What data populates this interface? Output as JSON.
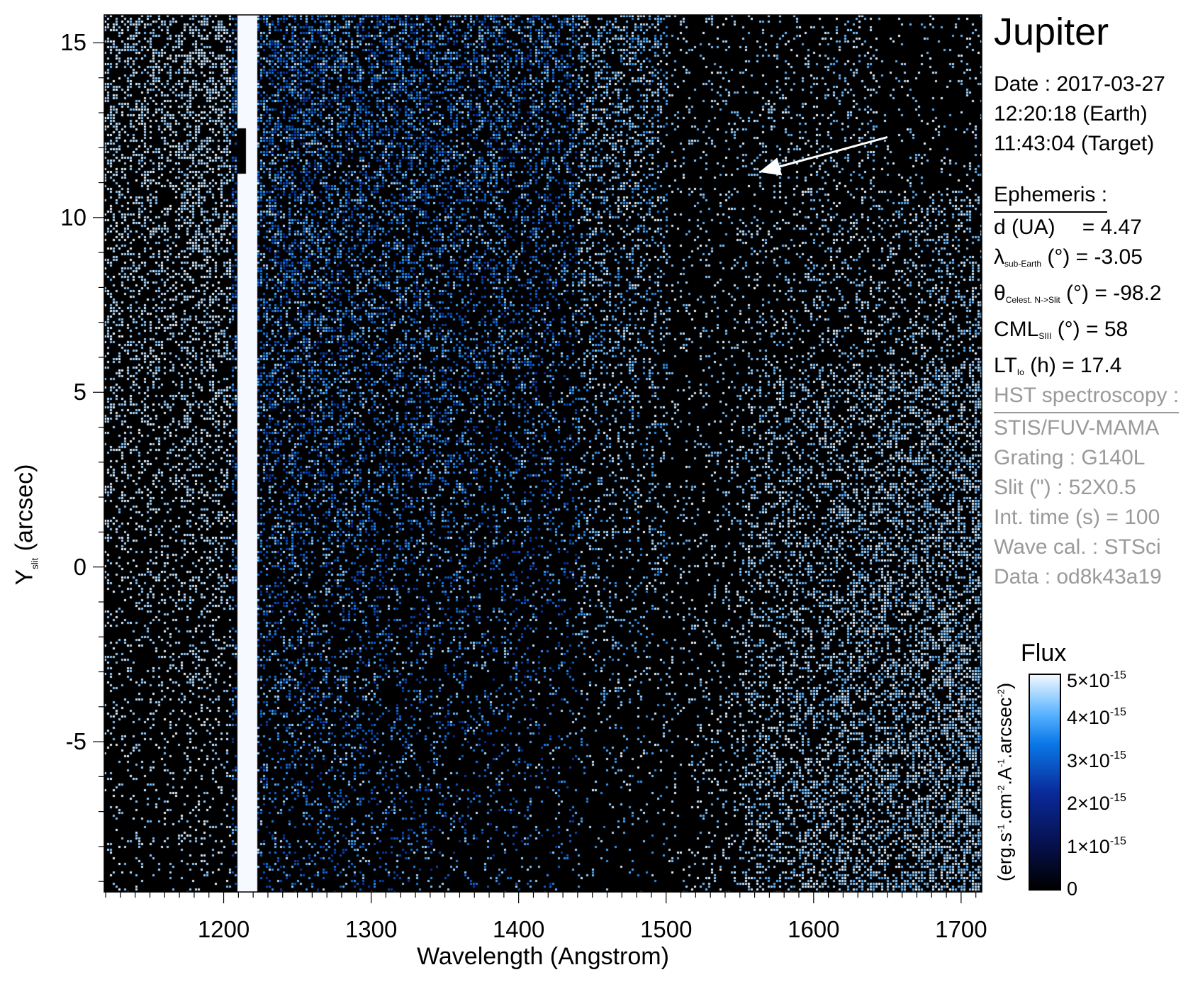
{
  "chart_data": {
    "type": "heatmap",
    "title": "Jupiter",
    "xlabel": "Wavelength (Angstrom)",
    "ylabel": {
      "main": "Y",
      "sub": "slit",
      "unit": "(arcsec)"
    },
    "xlim": [
      1119,
      1714
    ],
    "ylim": [
      -9.3,
      15.8
    ],
    "xticks": [
      1200,
      1300,
      1400,
      1500,
      1600,
      1700
    ],
    "yticks": [
      15,
      10,
      5,
      0,
      -5
    ],
    "xtick_labels": [
      "1200",
      "1300",
      "1400",
      "1500",
      "1600",
      "1700"
    ],
    "ytick_labels": [
      "15",
      "10",
      "5",
      "0",
      "-5"
    ],
    "features": {
      "lyman_alpha_band": [
        1208,
        1222
      ],
      "annotation_arrow": {
        "from": [
          1650,
          12.3
        ],
        "to": [
          1563,
          11.3
        ]
      }
    },
    "colorbar": {
      "title": "Flux",
      "unit_parts": [
        "(erg.s",
        "-1",
        ".cm",
        "-2",
        ".A",
        "-1",
        ".arcsec",
        "-2",
        ")"
      ],
      "range": [
        0,
        5e-15
      ],
      "ticks": [
        {
          "value": 5e-15,
          "mantissa": "5×10",
          "exp": "-15"
        },
        {
          "value": 4e-15,
          "mantissa": "4×10",
          "exp": "-15"
        },
        {
          "value": 3e-15,
          "mantissa": "3×10",
          "exp": "-15"
        },
        {
          "value": 2e-15,
          "mantissa": "2×10",
          "exp": "-15"
        },
        {
          "value": 1e-15,
          "mantissa": "1×10",
          "exp": "-15"
        },
        {
          "value": 0,
          "mantissa": "0",
          "exp": ""
        }
      ],
      "colors": [
        "#000000",
        "#06104a",
        "#0a2a9a",
        "#0a78e8",
        "#5ab4ff",
        "#f2f8ff"
      ]
    }
  },
  "info": {
    "date": "Date : 2017-03-27",
    "earth_time": "12:20:18 (Earth)",
    "target_time": "11:43:04 (Target)",
    "ephemeris_header": "Ephemeris :",
    "d": {
      "label": "d (UA)",
      "value": "= 4.47"
    },
    "lambda": {
      "sym": "λ",
      "sub": "sub-Earth",
      "rest": " (°)  = -3.05"
    },
    "theta": {
      "sym": "θ",
      "sub": "Celest. N->Slit",
      "rest": " (°) = -98.2"
    },
    "cml": {
      "sym": "CML",
      "sub": "SIII",
      "rest": " (°) = 58"
    },
    "lt": {
      "sym": "LT",
      "sub": "Io",
      "rest": " (h) = 17.4"
    },
    "hst_header": "HST spectroscopy :",
    "instrument": "STIS/FUV-MAMA",
    "grating": "Grating : G140L",
    "slit": "Slit (\") : 52X0.5",
    "int_time": "Int. time (s) = 100",
    "wave_cal": "Wave cal. : STSci",
    "data_id": "Data : od8k43a19"
  }
}
